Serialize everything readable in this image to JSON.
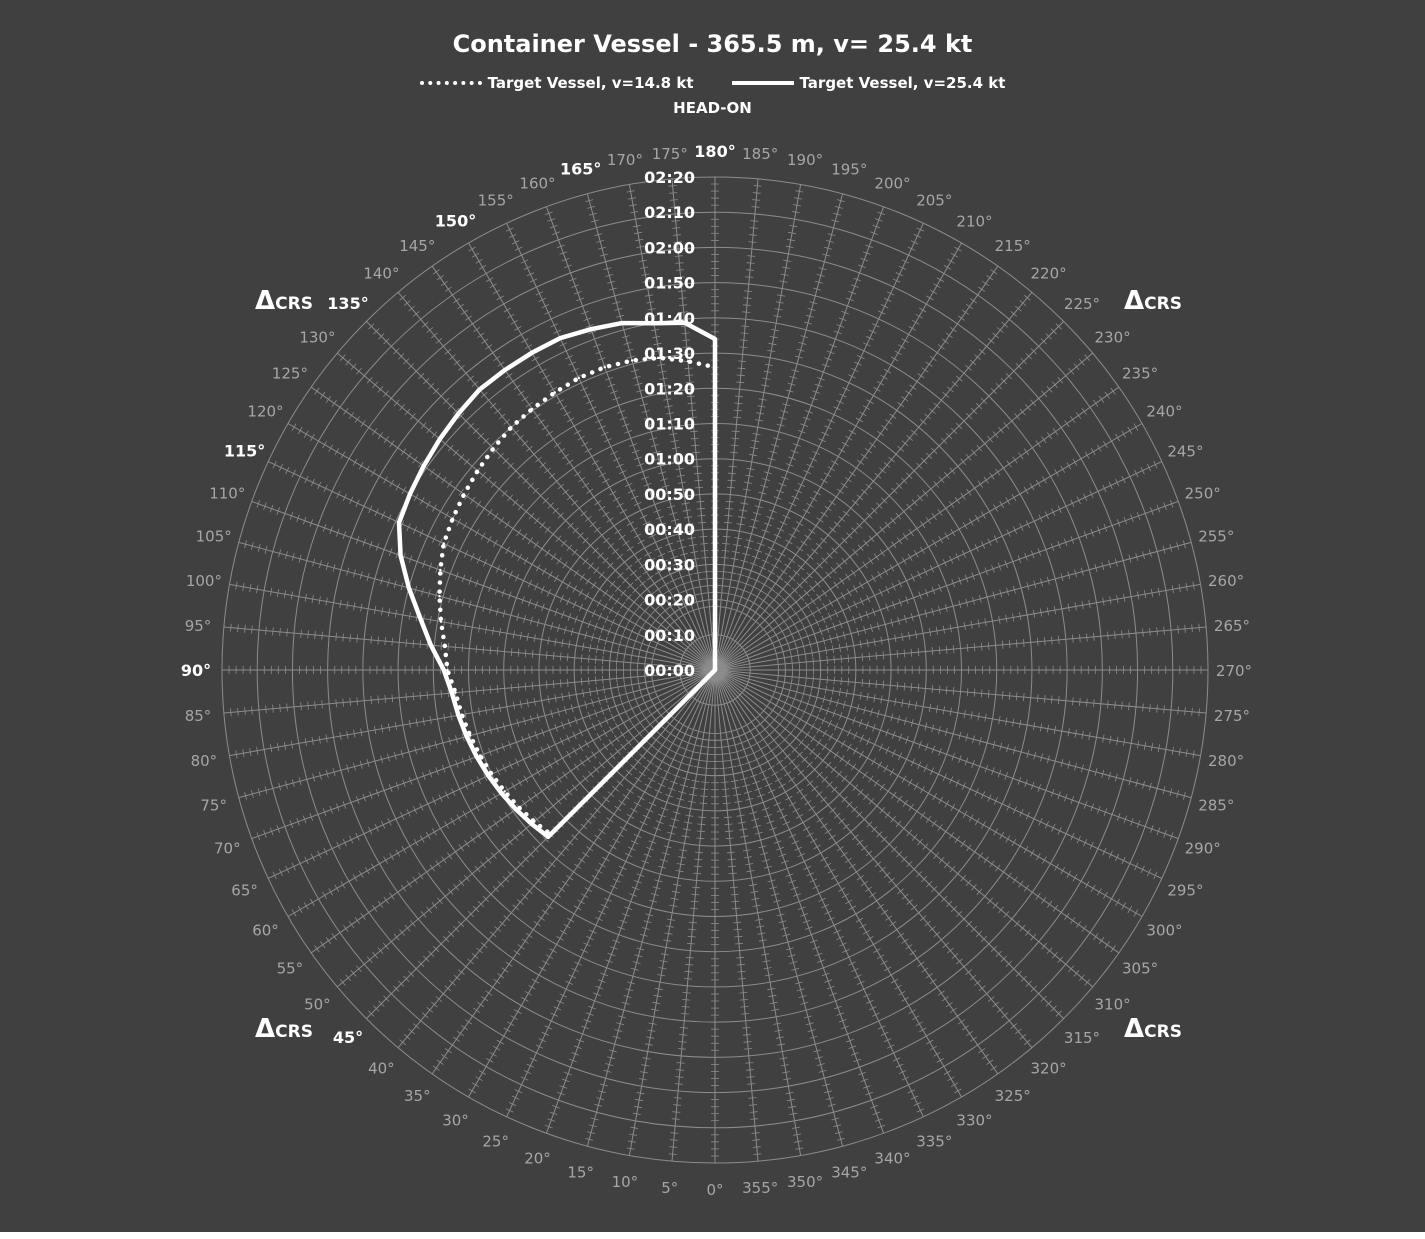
{
  "chart_data": {
    "type": "polar-line",
    "title": "Container Vessel - 365.5 m, v= 25.4 kt",
    "top_label": "HEAD-ON",
    "angle_unit": "deg",
    "angle_step": 5,
    "highlighted_angles": [
      180,
      165,
      150,
      135,
      115,
      90,
      45
    ],
    "radial_ticks": [
      "00:00",
      "00:10",
      "00:20",
      "00:30",
      "00:40",
      "00:50",
      "01:00",
      "01:10",
      "01:20",
      "01:30",
      "01:40",
      "01:50",
      "02:00",
      "02:10",
      "02:20"
    ],
    "radial_range_min": [
      0,
      140
    ],
    "delta_crs_angles": [
      135,
      225,
      45,
      315
    ],
    "delta_crs_label": {
      "delta": "Δ",
      "sub": "CRS"
    },
    "series": [
      {
        "name": "Target Vessel, v=14.8 kt",
        "style": "dotted",
        "color": "#ffffff",
        "points": [
          {
            "angle": 45,
            "value": 66
          },
          {
            "angle": 50,
            "value": 67
          },
          {
            "angle": 55,
            "value": 68
          },
          {
            "angle": 60,
            "value": 69
          },
          {
            "angle": 65,
            "value": 70
          },
          {
            "angle": 70,
            "value": 71
          },
          {
            "angle": 75,
            "value": 72
          },
          {
            "angle": 80,
            "value": 73
          },
          {
            "angle": 85,
            "value": 74
          },
          {
            "angle": 90,
            "value": 76
          },
          {
            "angle": 95,
            "value": 77
          },
          {
            "angle": 100,
            "value": 79
          },
          {
            "angle": 105,
            "value": 81
          },
          {
            "angle": 110,
            "value": 83
          },
          {
            "angle": 115,
            "value": 85
          },
          {
            "angle": 120,
            "value": 86
          },
          {
            "angle": 125,
            "value": 87
          },
          {
            "angle": 130,
            "value": 88
          },
          {
            "angle": 135,
            "value": 89
          },
          {
            "angle": 140,
            "value": 90
          },
          {
            "angle": 145,
            "value": 90.5
          },
          {
            "angle": 150,
            "value": 91
          },
          {
            "angle": 155,
            "value": 91.5
          },
          {
            "angle": 160,
            "value": 91.5
          },
          {
            "angle": 165,
            "value": 91
          },
          {
            "angle": 170,
            "value": 90
          },
          {
            "angle": 175,
            "value": 88
          },
          {
            "angle": 180,
            "value": 86
          }
        ]
      },
      {
        "name": "Target Vessel, v=25.4 kt",
        "style": "solid",
        "color": "#ffffff",
        "points": [
          {
            "angle": 45,
            "value": 67
          },
          {
            "angle": 50,
            "value": 68
          },
          {
            "angle": 55,
            "value": 69
          },
          {
            "angle": 60,
            "value": 70
          },
          {
            "angle": 65,
            "value": 71
          },
          {
            "angle": 70,
            "value": 72
          },
          {
            "angle": 75,
            "value": 73
          },
          {
            "angle": 80,
            "value": 74
          },
          {
            "angle": 85,
            "value": 75
          },
          {
            "angle": 90,
            "value": 77
          },
          {
            "angle": 95,
            "value": 81
          },
          {
            "angle": 100,
            "value": 85
          },
          {
            "angle": 105,
            "value": 90
          },
          {
            "angle": 110,
            "value": 95
          },
          {
            "angle": 115,
            "value": 99
          },
          {
            "angle": 120,
            "value": 100
          },
          {
            "angle": 125,
            "value": 101
          },
          {
            "angle": 130,
            "value": 102
          },
          {
            "angle": 135,
            "value": 103
          },
          {
            "angle": 140,
            "value": 104
          },
          {
            "angle": 145,
            "value": 104
          },
          {
            "angle": 150,
            "value": 104
          },
          {
            "angle": 155,
            "value": 104
          },
          {
            "angle": 160,
            "value": 103
          },
          {
            "angle": 165,
            "value": 102
          },
          {
            "angle": 170,
            "value": 100
          },
          {
            "angle": 175,
            "value": 99
          },
          {
            "angle": 180,
            "value": 94
          }
        ]
      }
    ]
  },
  "colors": {
    "background": "#404040",
    "grid": "#8c8c8c",
    "series": "#ffffff"
  }
}
